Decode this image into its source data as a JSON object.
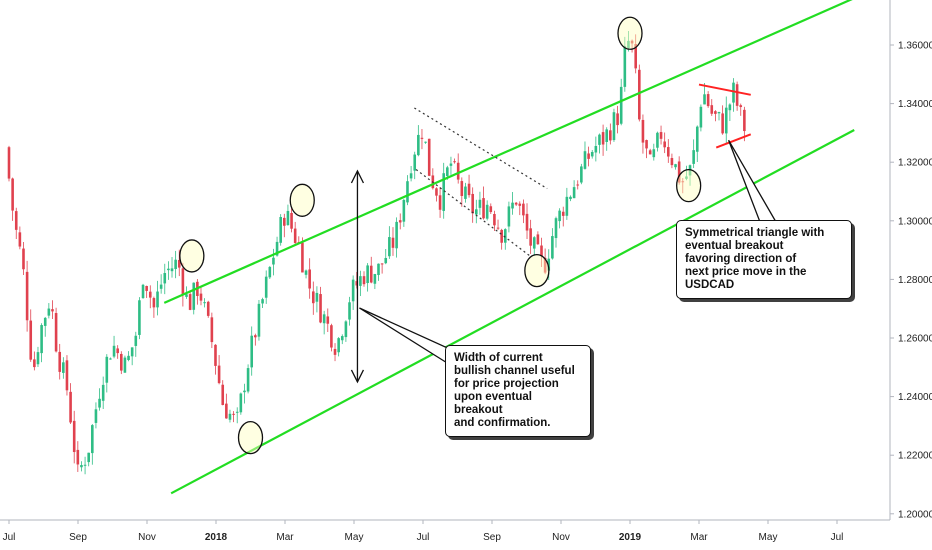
{
  "chart_data": {
    "type": "candlestick",
    "symbol": "USDCAD",
    "y_ticks": [
      "1.36000",
      "1.34000",
      "1.32000",
      "1.30000",
      "1.28000",
      "1.26000",
      "1.24000",
      "1.22000",
      "1.20000"
    ],
    "y_tick_values": [
      1.36,
      1.34,
      1.32,
      1.3,
      1.28,
      1.26,
      1.24,
      1.22,
      1.2
    ],
    "ylim": [
      1.197,
      1.378
    ],
    "x_ticks": [
      {
        "label": "Jul",
        "month_index": 0,
        "bold": false
      },
      {
        "label": "Sep",
        "month_index": 2,
        "bold": false
      },
      {
        "label": "Nov",
        "month_index": 4,
        "bold": false
      },
      {
        "label": "2018",
        "month_index": 6,
        "bold": true
      },
      {
        "label": "Mar",
        "month_index": 8,
        "bold": false
      },
      {
        "label": "May",
        "month_index": 10,
        "bold": false
      },
      {
        "label": "Jul",
        "month_index": 12,
        "bold": false
      },
      {
        "label": "Sep",
        "month_index": 14,
        "bold": false
      },
      {
        "label": "Nov",
        "month_index": 16,
        "bold": false
      },
      {
        "label": "2019",
        "month_index": 18,
        "bold": true
      },
      {
        "label": "Mar",
        "month_index": 20,
        "bold": false
      },
      {
        "label": "May",
        "month_index": 22,
        "bold": false
      },
      {
        "label": "Jul",
        "month_index": 24,
        "bold": false
      }
    ],
    "price_path": [
      [
        0.0,
        1.325
      ],
      [
        0.25,
        1.3
      ],
      [
        0.5,
        1.285
      ],
      [
        0.8,
        1.248
      ],
      [
        1.0,
        1.262
      ],
      [
        1.3,
        1.274
      ],
      [
        1.5,
        1.256
      ],
      [
        1.8,
        1.242
      ],
      [
        2.1,
        1.213
      ],
      [
        2.4,
        1.222
      ],
      [
        2.8,
        1.247
      ],
      [
        3.1,
        1.258
      ],
      [
        3.5,
        1.25
      ],
      [
        3.8,
        1.262
      ],
      [
        4.0,
        1.283
      ],
      [
        4.3,
        1.27
      ],
      [
        4.6,
        1.282
      ],
      [
        5.0,
        1.286
      ],
      [
        5.3,
        1.271
      ],
      [
        5.6,
        1.278
      ],
      [
        6.0,
        1.258
      ],
      [
        6.3,
        1.238
      ],
      [
        6.7,
        1.23
      ],
      [
        7.0,
        1.25
      ],
      [
        7.4,
        1.27
      ],
      [
        7.8,
        1.29
      ],
      [
        8.1,
        1.303
      ],
      [
        8.5,
        1.292
      ],
      [
        8.8,
        1.278
      ],
      [
        9.2,
        1.268
      ],
      [
        9.6,
        1.257
      ],
      [
        10.0,
        1.275
      ],
      [
        10.4,
        1.282
      ],
      [
        10.8,
        1.283
      ],
      [
        11.3,
        1.294
      ],
      [
        11.8,
        1.323
      ],
      [
        12.1,
        1.332
      ],
      [
        12.3,
        1.316
      ],
      [
        12.6,
        1.308
      ],
      [
        12.9,
        1.32
      ],
      [
        13.2,
        1.31
      ],
      [
        13.6,
        1.303
      ],
      [
        14.0,
        1.306
      ],
      [
        14.4,
        1.296
      ],
      [
        14.8,
        1.308
      ],
      [
        15.2,
        1.293
      ],
      [
        15.6,
        1.284
      ],
      [
        15.9,
        1.297
      ],
      [
        16.2,
        1.306
      ],
      [
        16.6,
        1.315
      ],
      [
        17.0,
        1.324
      ],
      [
        17.4,
        1.329
      ],
      [
        17.8,
        1.337
      ],
      [
        18.0,
        1.362
      ],
      [
        18.2,
        1.358
      ],
      [
        18.4,
        1.33
      ],
      [
        18.7,
        1.318
      ],
      [
        19.0,
        1.33
      ],
      [
        19.3,
        1.322
      ],
      [
        19.6,
        1.313
      ],
      [
        19.9,
        1.318
      ],
      [
        20.2,
        1.345
      ],
      [
        20.5,
        1.336
      ],
      [
        20.8,
        1.333
      ],
      [
        21.1,
        1.344
      ],
      [
        21.4,
        1.332
      ]
    ],
    "channel_lines": [
      {
        "name": "upper",
        "color": "#22dd22",
        "points": [
          [
            4.5,
            1.272
          ],
          [
            24.5,
            1.376
          ]
        ]
      },
      {
        "name": "lower",
        "color": "#22dd22",
        "points": [
          [
            4.7,
            1.207
          ],
          [
            24.5,
            1.331
          ]
        ]
      }
    ],
    "triangle_lines": [
      {
        "name": "top",
        "color": "#ff2222",
        "points": [
          [
            20.0,
            1.3465
          ],
          [
            21.5,
            1.343
          ]
        ]
      },
      {
        "name": "bottom",
        "color": "#ff2222",
        "points": [
          [
            20.5,
            1.325
          ],
          [
            21.5,
            1.3295
          ]
        ]
      }
    ],
    "dotted_pattern": [
      {
        "name": "upper",
        "points": [
          [
            11.75,
            1.3385
          ],
          [
            15.6,
            1.311
          ]
        ]
      },
      {
        "name": "lower",
        "points": [
          [
            11.8,
            1.3175
          ],
          [
            15.1,
            1.288
          ]
        ]
      }
    ],
    "circled_points": [
      {
        "month_index": 5.3,
        "price": 1.288
      },
      {
        "month_index": 7.0,
        "price": 1.226
      },
      {
        "month_index": 8.5,
        "price": 1.307
      },
      {
        "month_index": 15.3,
        "price": 1.283
      },
      {
        "month_index": 18.0,
        "price": 1.364
      },
      {
        "month_index": 19.7,
        "price": 1.312
      }
    ],
    "width_arrow": {
      "month_index": 10.1,
      "top": 1.317,
      "bottom": 1.245
    },
    "annotations": [
      "Width of current\nbullish channel useful\nfor price projection\nupon eventual breakout\nand confirmation.",
      "Symmetrical triangle with\neventual breakout\nfavoring direction of\nnext price move in the USDCAD"
    ],
    "colors": {
      "up": "#2ebd85",
      "down": "#e0414e",
      "channel": "#22dd22",
      "triangle": "#ff2222",
      "axis": "#b2b5be"
    }
  }
}
